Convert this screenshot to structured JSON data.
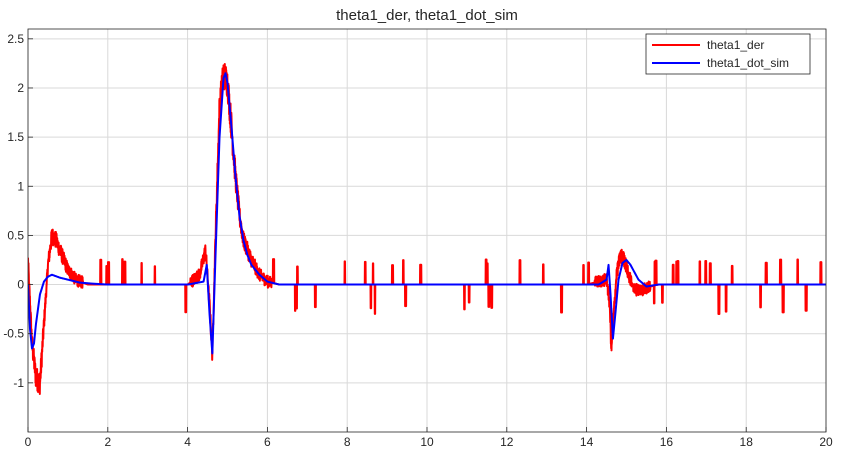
{
  "chart_data": {
    "type": "line",
    "title": "theta1_der, theta1_dot_sim",
    "xlabel": "",
    "ylabel": "",
    "xlim": [
      0,
      20
    ],
    "ylim": [
      -1.5,
      2.6
    ],
    "x_ticks": [
      0,
      2,
      4,
      6,
      8,
      10,
      12,
      14,
      16,
      18,
      20
    ],
    "x_tick_labels": [
      "0",
      "2",
      "4",
      "6",
      "8",
      "10",
      "12",
      "14",
      "16",
      "18",
      "20"
    ],
    "y_ticks": [
      -1,
      -0.5,
      0,
      0.5,
      1,
      1.5,
      2,
      2.5
    ],
    "y_tick_labels": [
      "-1",
      "-0.5",
      "0",
      "0.5",
      "1",
      "1.5",
      "2",
      "2.5"
    ],
    "grid": true,
    "legend_position": "top-right",
    "series": [
      {
        "name": "theta1_der",
        "color": "#ff0000",
        "noisy": true,
        "x": [
          0,
          0.1,
          0.2,
          0.3,
          0.4,
          0.5,
          0.6,
          0.7,
          0.8,
          0.9,
          1.0,
          1.2,
          1.5,
          2.0,
          2.5,
          3.0,
          3.5,
          4.0,
          4.3,
          4.45,
          4.55,
          4.62,
          4.7,
          4.8,
          4.9,
          5.0,
          5.1,
          5.2,
          5.3,
          5.4,
          5.6,
          5.8,
          6.0,
          6.3,
          7.0,
          8.0,
          9.0,
          10.0,
          11.0,
          12.0,
          13.0,
          14.0,
          14.5,
          14.58,
          14.62,
          14.68,
          14.75,
          14.85,
          14.95,
          15.05,
          15.2,
          15.4,
          15.6,
          15.8,
          16.0,
          17.0,
          18.0,
          19.0,
          20.0
        ],
        "values": [
          0.25,
          -0.6,
          -0.95,
          -1.0,
          -0.4,
          0.2,
          0.5,
          0.45,
          0.35,
          0.25,
          0.15,
          0.05,
          0,
          0,
          0,
          0,
          0,
          0,
          0.1,
          0.35,
          -0.2,
          -0.7,
          0.5,
          1.8,
          2.15,
          2.05,
          1.6,
          1.1,
          0.7,
          0.45,
          0.25,
          0.1,
          0.03,
          0,
          0,
          0,
          0,
          0,
          0,
          0,
          0,
          0,
          0.05,
          -0.2,
          -0.65,
          -0.3,
          0.1,
          0.3,
          0.25,
          0.1,
          -0.05,
          -0.05,
          -0.02,
          0,
          0,
          0,
          0,
          0,
          0
        ]
      },
      {
        "name": "theta1_dot_sim",
        "color": "#0000ff",
        "noisy": false,
        "x": [
          0,
          0.05,
          0.1,
          0.15,
          0.2,
          0.3,
          0.4,
          0.5,
          0.6,
          0.8,
          1.0,
          1.3,
          1.6,
          2.0,
          3.0,
          4.0,
          4.4,
          4.48,
          4.55,
          4.62,
          4.7,
          4.8,
          4.9,
          4.95,
          5.0,
          5.1,
          5.2,
          5.3,
          5.4,
          5.5,
          5.6,
          5.8,
          6.0,
          6.3,
          7.0,
          10.0,
          13.0,
          14.3,
          14.5,
          14.55,
          14.6,
          14.66,
          14.72,
          14.8,
          14.9,
          15.0,
          15.1,
          15.3,
          15.5,
          15.8,
          16.2,
          17.0,
          20.0
        ],
        "values": [
          0,
          -0.45,
          -0.65,
          -0.6,
          -0.4,
          -0.1,
          0.03,
          0.08,
          0.1,
          0.07,
          0.05,
          0.02,
          0.01,
          0,
          0,
          0,
          0.03,
          0.2,
          -0.3,
          -0.7,
          0.3,
          1.5,
          2.1,
          2.15,
          2.05,
          1.6,
          1.1,
          0.7,
          0.45,
          0.3,
          0.2,
          0.1,
          0.03,
          0,
          0,
          0,
          0,
          0,
          0.05,
          0.2,
          -0.1,
          -0.55,
          -0.3,
          0.05,
          0.22,
          0.25,
          0.2,
          0.05,
          -0.02,
          0,
          0,
          0,
          0
        ]
      }
    ]
  }
}
